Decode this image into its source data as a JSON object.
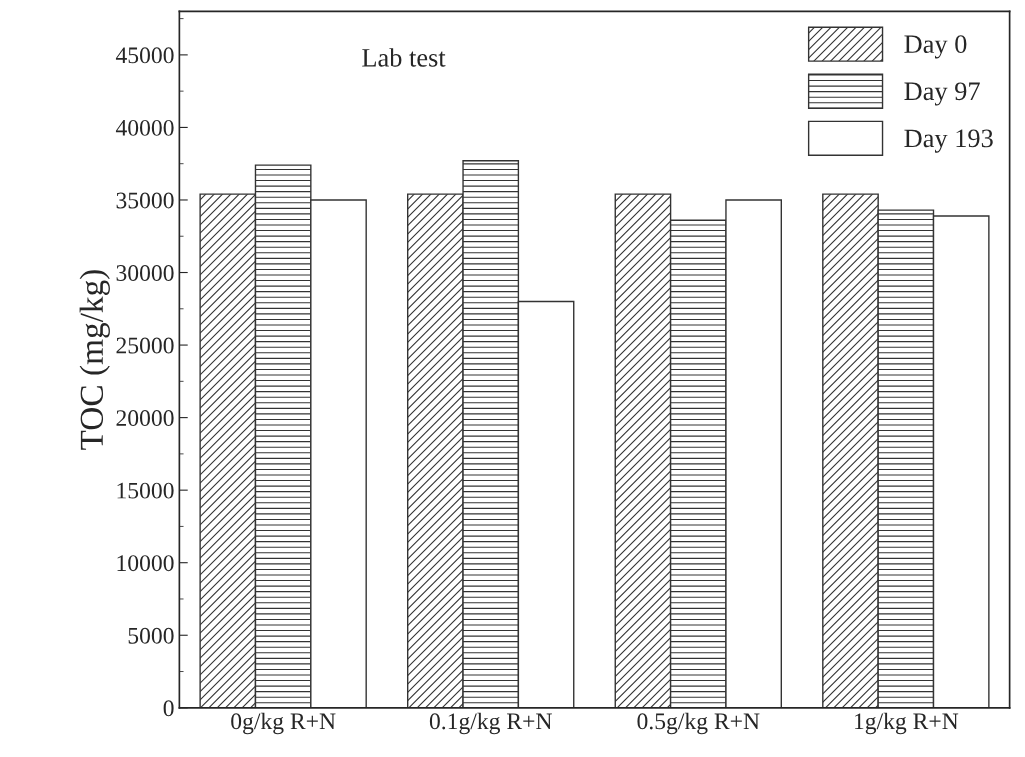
{
  "chart_data": {
    "type": "bar",
    "title": "Lab test",
    "ylabel": "TOC (mg/kg)",
    "categories": [
      "0g/kg R+N",
      "0.1g/kg R+N",
      "0.5g/kg R+N",
      "1g/kg R+N"
    ],
    "series": [
      {
        "name": "Day 0",
        "color": "#333333",
        "values": [
          35400,
          35400,
          35400,
          35400
        ]
      },
      {
        "name": "Day 97",
        "color": "#333333",
        "values": [
          37400,
          37700,
          33600,
          34300
        ]
      },
      {
        "name": "Day 193",
        "color": "#ffffff",
        "values": [
          35000,
          28000,
          35000,
          33900
        ]
      }
    ],
    "ylim": [
      0,
      48000
    ],
    "yticks": [
      0,
      5000,
      10000,
      15000,
      20000,
      25000,
      30000,
      35000,
      40000,
      45000
    ],
    "grid": false,
    "legend": "top right"
  }
}
